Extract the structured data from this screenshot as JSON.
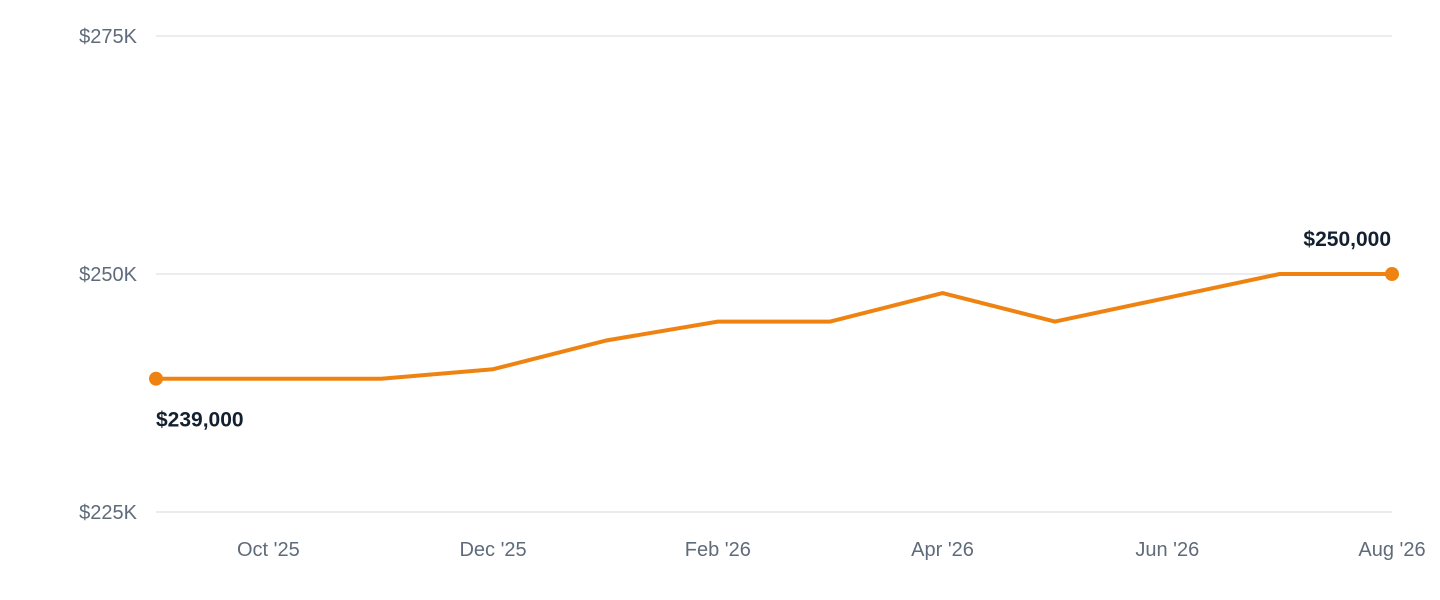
{
  "chart_data": {
    "type": "line",
    "x": [
      "Sep '25",
      "Oct '25",
      "Nov '25",
      "Dec '25",
      "Jan '26",
      "Feb '26",
      "Mar '26",
      "Apr '26",
      "May '26",
      "Jun '26",
      "Jul '26",
      "Aug '26"
    ],
    "y_tick_labels": [
      "$275K",
      "$250K",
      "$225K"
    ],
    "y_ticks": [
      275000,
      250000,
      225000
    ],
    "x_tick_labels": [
      "Oct '25",
      "Dec '25",
      "Feb '26",
      "Apr '26",
      "Jun '26",
      "Aug '26"
    ],
    "ylim": [
      225000,
      275000
    ],
    "grid": "horizontal",
    "legend": "none",
    "series": [
      {
        "color": "#ef8312",
        "values": [
          239000,
          239000,
          239000,
          240000,
          243000,
          245000,
          245000,
          248000,
          245000,
          247500,
          250000,
          250000
        ]
      }
    ],
    "annotations": [
      {
        "text": "$239,000",
        "index": 0,
        "placement": "below"
      },
      {
        "text": "$250,000",
        "index": 11,
        "placement": "above"
      }
    ]
  }
}
